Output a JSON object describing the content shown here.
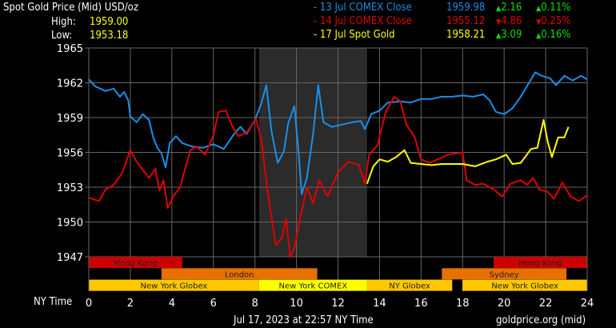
{
  "header": {
    "title": "Spot Gold Price (Mid) USD/oz",
    "high_label": "High:",
    "high_value": "1959.00",
    "low_label": "Low:",
    "low_value": "1953.18"
  },
  "legend": [
    {
      "label": "- 13 Jul COMEX Close",
      "price": "1959.98",
      "change": "2.16",
      "pct": "0.11%",
      "dir": "up",
      "color": "#1a8fe8"
    },
    {
      "label": "- 14 Jul COMEX Close",
      "price": "1955.12",
      "change": "4.86",
      "pct": "0.25%",
      "dir": "down",
      "color": "#e00000"
    },
    {
      "label": "- 17 Jul Spot Gold",
      "price": "1958.21",
      "change": "3.09",
      "pct": "0.16%",
      "dir": "up",
      "color": "#ffff00"
    }
  ],
  "colors": {
    "up": "#00e000",
    "down": "#e00000",
    "grid": "#666666",
    "comex_shade": "#2b2b2b"
  },
  "footer": {
    "timestamp": "Jul 17, 2023 at 22:57 NY Time",
    "source": "goldprice.org (mid)"
  },
  "chart_data": {
    "type": "line",
    "xlabel": "NY Time",
    "xlim": [
      0,
      24
    ],
    "ylim": [
      1947,
      1965
    ],
    "xticks": [
      "0",
      "2",
      "4",
      "6",
      "8",
      "10",
      "12",
      "14",
      "16",
      "18",
      "20",
      "22",
      "24"
    ],
    "yticks": [
      "1947",
      "1950",
      "1953",
      "1956",
      "1959",
      "1962",
      "1965"
    ],
    "grid": true,
    "sessions": [
      {
        "name": "Hong Kong",
        "start": 0,
        "end": 4.5,
        "row": 0,
        "color": "#cc0000"
      },
      {
        "name": "Hong Kong",
        "start": 19.5,
        "end": 24,
        "row": 0,
        "color": "#cc0000"
      },
      {
        "name": "London",
        "start": 3.5,
        "end": 11,
        "row": 1,
        "color": "#e87000"
      },
      {
        "name": "Sydney",
        "start": 17,
        "end": 23,
        "row": 1,
        "color": "#e87000"
      },
      {
        "name": "New York Globex",
        "start": 0,
        "end": 8.2,
        "row": 2,
        "color": "#ffc800"
      },
      {
        "name": "New York COMEX",
        "start": 8.2,
        "end": 13.4,
        "row": 2,
        "color": "#ffff00"
      },
      {
        "name": "NY Globex",
        "start": 13.4,
        "end": 17.5,
        "row": 2,
        "color": "#ffc800"
      },
      {
        "name": "New York Globex",
        "start": 18,
        "end": 24,
        "row": 2,
        "color": "#ffc800"
      }
    ],
    "comex_shade": [
      8.2,
      13.4
    ],
    "series": [
      {
        "name": "13 Jul COMEX Close",
        "color": "#1a8fe8",
        "points": [
          [
            0,
            1962.3
          ],
          [
            0.3,
            1961.7
          ],
          [
            0.8,
            1961.3
          ],
          [
            1.2,
            1961.5
          ],
          [
            1.5,
            1960.8
          ],
          [
            1.7,
            1961.2
          ],
          [
            1.9,
            1960.5
          ],
          [
            2.0,
            1959.1
          ],
          [
            2.3,
            1958.6
          ],
          [
            2.6,
            1959.3
          ],
          [
            2.9,
            1958.8
          ],
          [
            3.1,
            1957.3
          ],
          [
            3.3,
            1956.4
          ],
          [
            3.5,
            1955.9
          ],
          [
            3.7,
            1954.7
          ],
          [
            3.9,
            1956.8
          ],
          [
            4.2,
            1957.4
          ],
          [
            4.5,
            1956.8
          ],
          [
            5,
            1956.5
          ],
          [
            5.5,
            1956.4
          ],
          [
            6,
            1956.7
          ],
          [
            6.5,
            1956.3
          ],
          [
            7,
            1957.6
          ],
          [
            7.3,
            1958.2
          ],
          [
            7.6,
            1957.6
          ],
          [
            8,
            1958.8
          ],
          [
            8.3,
            1960.2
          ],
          [
            8.55,
            1961.8
          ],
          [
            8.8,
            1957.8
          ],
          [
            9.1,
            1955.1
          ],
          [
            9.4,
            1956.1
          ],
          [
            9.6,
            1958.5
          ],
          [
            9.9,
            1960
          ],
          [
            10.1,
            1956
          ],
          [
            10.25,
            1952.4
          ],
          [
            10.5,
            1953.8
          ],
          [
            10.8,
            1957.6
          ],
          [
            11.05,
            1961.8
          ],
          [
            11.3,
            1958.6
          ],
          [
            11.7,
            1958.2
          ],
          [
            12.2,
            1958.4
          ],
          [
            12.7,
            1958.6
          ],
          [
            13.1,
            1958.7
          ],
          [
            13.3,
            1958.0
          ],
          [
            13.6,
            1959.3
          ],
          [
            14,
            1959.6
          ],
          [
            14.4,
            1960.3
          ],
          [
            15,
            1960.4
          ],
          [
            15.5,
            1960.3
          ],
          [
            16,
            1960.6
          ],
          [
            16.5,
            1960.6
          ],
          [
            17,
            1960.8
          ],
          [
            17.5,
            1960.8
          ],
          [
            18,
            1960.9
          ],
          [
            18.5,
            1960.8
          ],
          [
            19,
            1961
          ],
          [
            19.3,
            1960.5
          ],
          [
            19.6,
            1959.5
          ],
          [
            20,
            1959.3
          ],
          [
            20.4,
            1959.8
          ],
          [
            20.8,
            1960.8
          ],
          [
            21.2,
            1962
          ],
          [
            21.5,
            1962.9
          ],
          [
            21.8,
            1962.6
          ],
          [
            22.2,
            1962.4
          ],
          [
            22.5,
            1961.8
          ],
          [
            22.9,
            1962.6
          ],
          [
            23.3,
            1962.2
          ],
          [
            23.7,
            1962.6
          ],
          [
            24,
            1962.3
          ]
        ]
      },
      {
        "name": "14 Jul COMEX Close",
        "color": "#e00000",
        "points": [
          [
            0,
            1952.1
          ],
          [
            0.5,
            1951.8
          ],
          [
            0.8,
            1952.8
          ],
          [
            1.2,
            1953.2
          ],
          [
            1.6,
            1954.2
          ],
          [
            2.0,
            1956.2
          ],
          [
            2.3,
            1955.2
          ],
          [
            2.6,
            1954.5
          ],
          [
            2.9,
            1953.8
          ],
          [
            3.2,
            1954.6
          ],
          [
            3.4,
            1952.7
          ],
          [
            3.6,
            1953.6
          ],
          [
            3.8,
            1951.2
          ],
          [
            4.1,
            1952.3
          ],
          [
            4.4,
            1953
          ],
          [
            4.7,
            1955
          ],
          [
            4.9,
            1956.2
          ],
          [
            5.2,
            1956.5
          ],
          [
            5.6,
            1955.8
          ],
          [
            6.0,
            1957.5
          ],
          [
            6.25,
            1959.5
          ],
          [
            6.6,
            1959.6
          ],
          [
            6.9,
            1958.3
          ],
          [
            7.2,
            1957.4
          ],
          [
            7.6,
            1957.7
          ],
          [
            8.05,
            1958.9
          ],
          [
            8.3,
            1957.2
          ],
          [
            8.6,
            1952.8
          ],
          [
            9.0,
            1948
          ],
          [
            9.3,
            1948.6
          ],
          [
            9.5,
            1950.3
          ],
          [
            9.7,
            1947
          ],
          [
            9.9,
            1947.8
          ],
          [
            10.2,
            1950.5
          ],
          [
            10.5,
            1953
          ],
          [
            10.8,
            1951.6
          ],
          [
            11.1,
            1953.6
          ],
          [
            11.5,
            1952.2
          ],
          [
            12,
            1954.3
          ],
          [
            12.5,
            1955.2
          ],
          [
            13,
            1954.9
          ],
          [
            13.3,
            1953.3
          ],
          [
            13.5,
            1955.8
          ],
          [
            13.9,
            1956.6
          ],
          [
            14.3,
            1959.5
          ],
          [
            14.7,
            1960.8
          ],
          [
            15.0,
            1960.4
          ],
          [
            15.3,
            1958.4
          ],
          [
            15.7,
            1957.3
          ],
          [
            16,
            1955.4
          ],
          [
            16.4,
            1955.1
          ],
          [
            16.8,
            1955.4
          ],
          [
            17.3,
            1955.8
          ],
          [
            18.0,
            1956.0
          ],
          [
            18.2,
            1953.6
          ],
          [
            18.6,
            1953.2
          ],
          [
            19,
            1953.3
          ],
          [
            19.5,
            1952.8
          ],
          [
            19.9,
            1952.2
          ],
          [
            20.3,
            1953.3
          ],
          [
            20.8,
            1953.6
          ],
          [
            21.1,
            1953.2
          ],
          [
            21.4,
            1953.8
          ],
          [
            21.7,
            1952.8
          ],
          [
            22.1,
            1952.6
          ],
          [
            22.4,
            1952
          ],
          [
            22.8,
            1953.4
          ],
          [
            23.2,
            1952.2
          ],
          [
            23.6,
            1951.8
          ],
          [
            24,
            1952.3
          ]
        ]
      },
      {
        "name": "17 Jul Spot Gold",
        "color": "#ffff00",
        "points": [
          [
            13.4,
            1953.3
          ],
          [
            13.7,
            1954.8
          ],
          [
            14.0,
            1955.4
          ],
          [
            14.4,
            1955.2
          ],
          [
            14.8,
            1955.6
          ],
          [
            15.2,
            1956.2
          ],
          [
            15.5,
            1955.1
          ],
          [
            16,
            1955
          ],
          [
            16.5,
            1954.9
          ],
          [
            17,
            1955
          ],
          [
            17.5,
            1955
          ],
          [
            18,
            1955
          ],
          [
            18.6,
            1954.8
          ],
          [
            19.2,
            1955.2
          ],
          [
            19.6,
            1955.4
          ],
          [
            20.1,
            1955.8
          ],
          [
            20.4,
            1955
          ],
          [
            20.8,
            1955.1
          ],
          [
            21.3,
            1956.3
          ],
          [
            21.6,
            1956.4
          ],
          [
            21.9,
            1958.8
          ],
          [
            22.1,
            1956.9
          ],
          [
            22.3,
            1955.6
          ],
          [
            22.6,
            1957.3
          ],
          [
            22.9,
            1957.3
          ],
          [
            23.1,
            1958.2
          ]
        ]
      }
    ]
  }
}
